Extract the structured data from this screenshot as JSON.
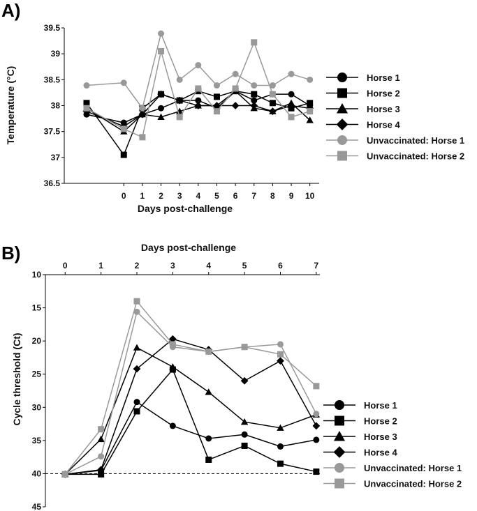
{
  "chart_data": [
    {
      "panel_label": "A)",
      "type": "line",
      "xlabel": "Days post-challenge",
      "ylabel": "Temperature (°C)",
      "x_positions": [
        -2,
        0,
        1,
        2,
        3,
        4,
        5,
        6,
        7,
        8,
        9,
        10
      ],
      "x_ticks": [
        0,
        1,
        2,
        3,
        4,
        5,
        6,
        7,
        8,
        9,
        10
      ],
      "x_tick_labels": [
        "0",
        "1",
        "2",
        "3",
        "4",
        "5",
        "6",
        "7",
        "8",
        "9",
        "10"
      ],
      "xlim": [
        -3.2,
        10.5
      ],
      "ylim": [
        36.5,
        39.5
      ],
      "y_ticks": [
        36.5,
        37,
        37.5,
        38,
        38.5,
        39,
        39.5
      ],
      "y_tick_labels": [
        "36.5",
        "37",
        "37.5",
        "38",
        "38.5",
        "39",
        "39.5"
      ],
      "series": [
        {
          "name": "Horse 1",
          "marker": "circle",
          "color": "#000000",
          "values": [
            37.83,
            37.67,
            37.83,
            37.95,
            38.1,
            38.1,
            37.95,
            38.28,
            38.1,
            38.22,
            38.22,
            38.0
          ]
        },
        {
          "name": "Horse 2",
          "marker": "square",
          "color": "#000000",
          "values": [
            38.05,
            37.05,
            37.95,
            38.22,
            38.1,
            38.28,
            38.17,
            38.28,
            38.22,
            38.05,
            37.95,
            38.05
          ]
        },
        {
          "name": "Horse 3",
          "marker": "triangle",
          "color": "#000000",
          "values": [
            37.95,
            37.5,
            37.83,
            37.78,
            37.89,
            38.0,
            38.0,
            38.28,
            37.95,
            37.89,
            38.05,
            37.72
          ]
        },
        {
          "name": "Horse 4",
          "marker": "diamond",
          "color": "#000000",
          "values": [
            37.89,
            37.6,
            37.83,
            38.22,
            38.1,
            38.0,
            38.0,
            38.0,
            38.0,
            37.89,
            38.0,
            37.95
          ]
        },
        {
          "name": "Unvaccinated: Horse 1",
          "marker": "circle",
          "color": "#999999",
          "values": [
            38.39,
            38.44,
            37.95,
            39.39,
            38.5,
            38.78,
            38.39,
            38.61,
            38.39,
            38.39,
            38.61,
            38.5
          ]
        },
        {
          "name": "Unvaccinated: Horse 2",
          "marker": "square",
          "color": "#999999",
          "values": [
            37.95,
            37.55,
            37.39,
            39.05,
            37.78,
            38.33,
            37.89,
            38.33,
            39.22,
            38.22,
            37.78,
            37.89
          ]
        }
      ]
    },
    {
      "panel_label": "B)",
      "type": "line",
      "xlabel": "Days post-challenge",
      "ylabel": "Cycle threshold (Ct)",
      "x": [
        0,
        1,
        2,
        3,
        4,
        5,
        6,
        7
      ],
      "x_tick_labels": [
        "0",
        "1",
        "2",
        "3",
        "4",
        "5",
        "6",
        "7"
      ],
      "xlim": [
        -0.55,
        7.1
      ],
      "ylim": [
        10,
        45
      ],
      "y_inverted": true,
      "y_ticks": [
        10,
        15,
        20,
        25,
        30,
        35,
        40,
        45
      ],
      "y_tick_labels": [
        "10",
        "15",
        "20",
        "25",
        "30",
        "35",
        "40",
        "45"
      ],
      "reference_line": {
        "y": 40,
        "style": "dashed"
      },
      "series": [
        {
          "name": "Horse 1",
          "marker": "circle",
          "color": "#000000",
          "values": [
            40.1,
            39.5,
            29.2,
            32.8,
            34.7,
            34.1,
            35.9,
            34.9
          ]
        },
        {
          "name": "Horse 2",
          "marker": "square",
          "color": "#000000",
          "values": [
            40.1,
            40.1,
            30.6,
            24.3,
            37.9,
            35.8,
            38.5,
            39.7
          ]
        },
        {
          "name": "Horse 3",
          "marker": "triangle",
          "color": "#000000",
          "values": [
            40.1,
            34.8,
            21.0,
            23.9,
            27.7,
            32.2,
            33.1,
            31.1
          ]
        },
        {
          "name": "Horse 4",
          "marker": "diamond",
          "color": "#000000",
          "values": [
            40.1,
            39.4,
            24.2,
            19.7,
            21.3,
            26.0,
            23.0,
            32.8
          ]
        },
        {
          "name": "Unvaccinated: Horse 1",
          "marker": "circle",
          "color": "#999999",
          "values": [
            40.1,
            37.4,
            15.6,
            20.9,
            21.6,
            20.9,
            20.5,
            31.0
          ]
        },
        {
          "name": "Unvaccinated: Horse 2",
          "marker": "square",
          "color": "#999999",
          "values": [
            40.1,
            33.3,
            14.0,
            20.5,
            21.6,
            20.9,
            22.0,
            26.8
          ]
        }
      ]
    }
  ]
}
